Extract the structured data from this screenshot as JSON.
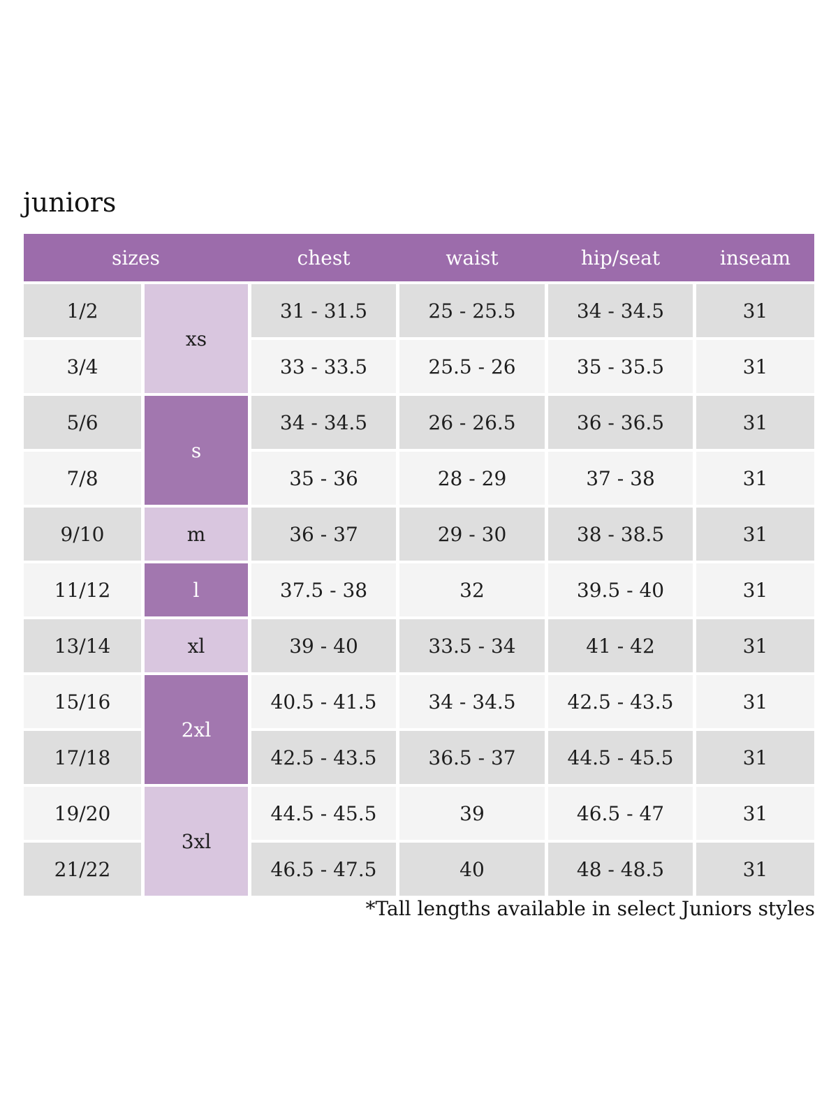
{
  "title": "juniors",
  "footnote": "*Tall lengths available in select Juniors styles",
  "colors": {
    "header_bg": "#9c6cab",
    "size_cell_dark": "#a277af",
    "size_cell_light": "#d9c6df",
    "row_gray": "#dedede",
    "row_light": "#f4f4f4",
    "header_text": "#ffffff",
    "body_text": "#1e1e1e"
  },
  "table": {
    "headers": [
      "sizes",
      "chest",
      "waist",
      "hip/seat",
      "inseam"
    ],
    "size_groups": [
      {
        "label": "xs",
        "rows": 2,
        "shade": "light"
      },
      {
        "label": "s",
        "rows": 2,
        "shade": "dark"
      },
      {
        "label": "m",
        "rows": 1,
        "shade": "light"
      },
      {
        "label": "l",
        "rows": 1,
        "shade": "dark"
      },
      {
        "label": "xl",
        "rows": 1,
        "shade": "light"
      },
      {
        "label": "2xl",
        "rows": 2,
        "shade": "dark"
      },
      {
        "label": "3xl",
        "rows": 2,
        "shade": "light"
      }
    ],
    "rows": [
      {
        "size": "1/2",
        "chest": "31 - 31.5",
        "waist": "25 - 25.5",
        "hip_seat": "34 - 34.5",
        "inseam": "31"
      },
      {
        "size": "3/4",
        "chest": "33 - 33.5",
        "waist": "25.5 - 26",
        "hip_seat": "35 - 35.5",
        "inseam": "31"
      },
      {
        "size": "5/6",
        "chest": "34 - 34.5",
        "waist": "26 - 26.5",
        "hip_seat": "36 - 36.5",
        "inseam": "31"
      },
      {
        "size": "7/8",
        "chest": "35 - 36",
        "waist": "28 - 29",
        "hip_seat": "37 - 38",
        "inseam": "31"
      },
      {
        "size": "9/10",
        "chest": "36 - 37",
        "waist": "29 - 30",
        "hip_seat": "38 - 38.5",
        "inseam": "31"
      },
      {
        "size": "11/12",
        "chest": "37.5 - 38",
        "waist": "32",
        "hip_seat": "39.5 - 40",
        "inseam": "31"
      },
      {
        "size": "13/14",
        "chest": "39 - 40",
        "waist": "33.5 - 34",
        "hip_seat": "41 - 42",
        "inseam": "31"
      },
      {
        "size": "15/16",
        "chest": "40.5 - 41.5",
        "waist": "34 - 34.5",
        "hip_seat": "42.5 - 43.5",
        "inseam": "31"
      },
      {
        "size": "17/18",
        "chest": "42.5 - 43.5",
        "waist": "36.5 - 37",
        "hip_seat": "44.5 - 45.5",
        "inseam": "31"
      },
      {
        "size": "19/20",
        "chest": "44.5 - 45.5",
        "waist": "39",
        "hip_seat": "46.5 - 47",
        "inseam": "31"
      },
      {
        "size": "21/22",
        "chest": "46.5 - 47.5",
        "waist": "40",
        "hip_seat": "48 - 48.5",
        "inseam": "31"
      }
    ]
  }
}
